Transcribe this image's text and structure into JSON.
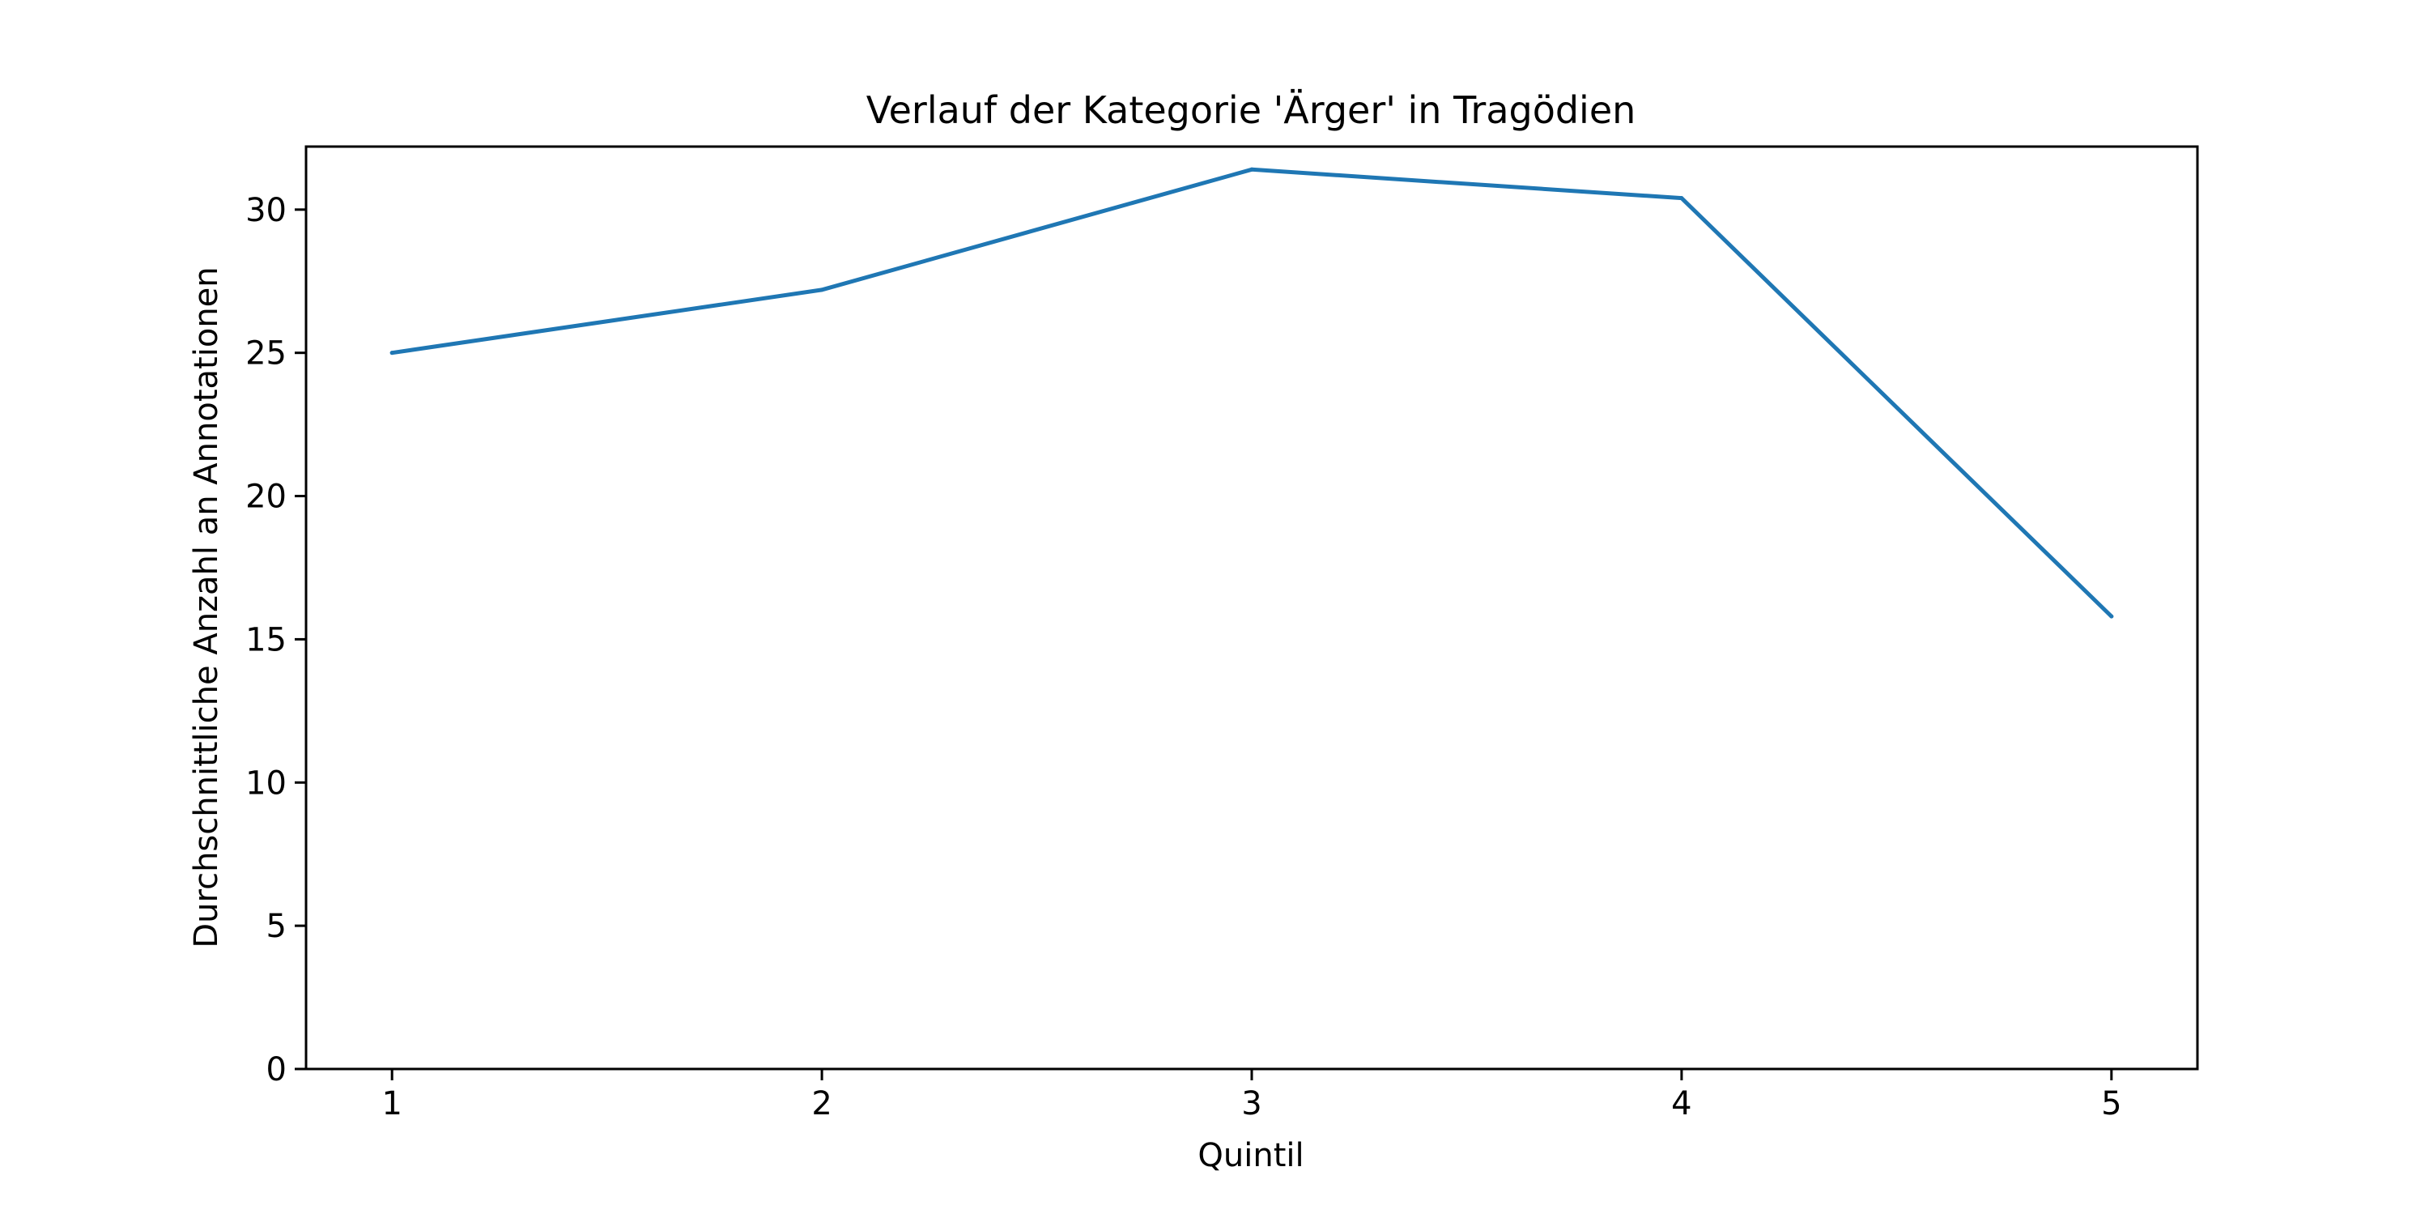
{
  "chart_data": {
    "type": "line",
    "title": "Verlauf der Kategorie 'Ärger' in Tragödien",
    "xlabel": "Quintil",
    "ylabel": "Durchschnittliche Anzahl an Annotationen",
    "x": [
      1,
      2,
      3,
      4,
      5
    ],
    "x_tick_labels": [
      "1",
      "2",
      "3",
      "4",
      "5"
    ],
    "xlim": [
      0.8,
      5.2
    ],
    "y_ticks": [
      0,
      5,
      10,
      15,
      20,
      25,
      30
    ],
    "y_tick_labels": [
      "0",
      "5",
      "10",
      "15",
      "20",
      "25",
      "30"
    ],
    "ylim": [
      0,
      32.2
    ],
    "series": [
      {
        "values": [
          25.0,
          27.2,
          31.4,
          30.4,
          15.8
        ],
        "color": "#1f77b4"
      }
    ],
    "grid": false,
    "legend": "none"
  }
}
